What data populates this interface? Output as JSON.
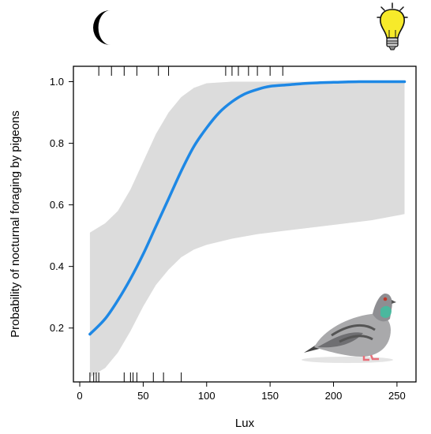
{
  "chart_data": {
    "type": "line",
    "title": "",
    "xlabel": "Lux",
    "ylabel": "Probability of nocturnal foraging by pigeons",
    "xlim": [
      -5,
      265
    ],
    "ylim": [
      0.025,
      1.05
    ],
    "xticks": [
      0,
      50,
      100,
      150,
      200,
      250
    ],
    "yticks": [
      0.2,
      0.4,
      0.6,
      0.8,
      1.0
    ],
    "xtick_labels": [
      "0",
      "50",
      "100",
      "150",
      "200",
      "250"
    ],
    "ytick_labels": [
      "0.2",
      "0.4",
      "0.6",
      "0.8",
      "1.0"
    ],
    "grid": false,
    "series": [
      {
        "color": "#1e88e5",
        "x": [
          8,
          20,
          30,
          40,
          50,
          60,
          70,
          80,
          90,
          100,
          110,
          120,
          130,
          140,
          150,
          165,
          180,
          200,
          220,
          240,
          256
        ],
        "y": [
          0.18,
          0.23,
          0.29,
          0.36,
          0.44,
          0.53,
          0.62,
          0.71,
          0.79,
          0.85,
          0.9,
          0.935,
          0.96,
          0.975,
          0.985,
          0.99,
          0.995,
          0.998,
          1.0,
          1.0,
          1.0
        ]
      }
    ],
    "confidence_band": {
      "color": "#dcdcdc",
      "x": [
        8,
        20,
        30,
        40,
        50,
        60,
        70,
        80,
        90,
        100,
        120,
        140,
        160,
        180,
        200,
        230,
        256
      ],
      "upper": [
        0.51,
        0.54,
        0.58,
        0.65,
        0.74,
        0.83,
        0.9,
        0.95,
        0.98,
        0.995,
        1.0,
        1.0,
        1.0,
        1.0,
        1.0,
        1.0,
        1.0
      ],
      "lower": [
        0.04,
        0.07,
        0.12,
        0.19,
        0.27,
        0.34,
        0.39,
        0.43,
        0.455,
        0.47,
        0.49,
        0.505,
        0.515,
        0.525,
        0.535,
        0.55,
        0.57
      ]
    },
    "rug_top_x": [
      15,
      25,
      35,
      45,
      62,
      70,
      115,
      120,
      125,
      133,
      140,
      150,
      160
    ],
    "rug_bottom_x": [
      8,
      11,
      13,
      15,
      35,
      40,
      42,
      45,
      58,
      66,
      80
    ]
  },
  "icons": {
    "top_left": "moon-icon",
    "top_right": "lightbulb-icon",
    "bottom_right": "pigeon-illustration"
  }
}
